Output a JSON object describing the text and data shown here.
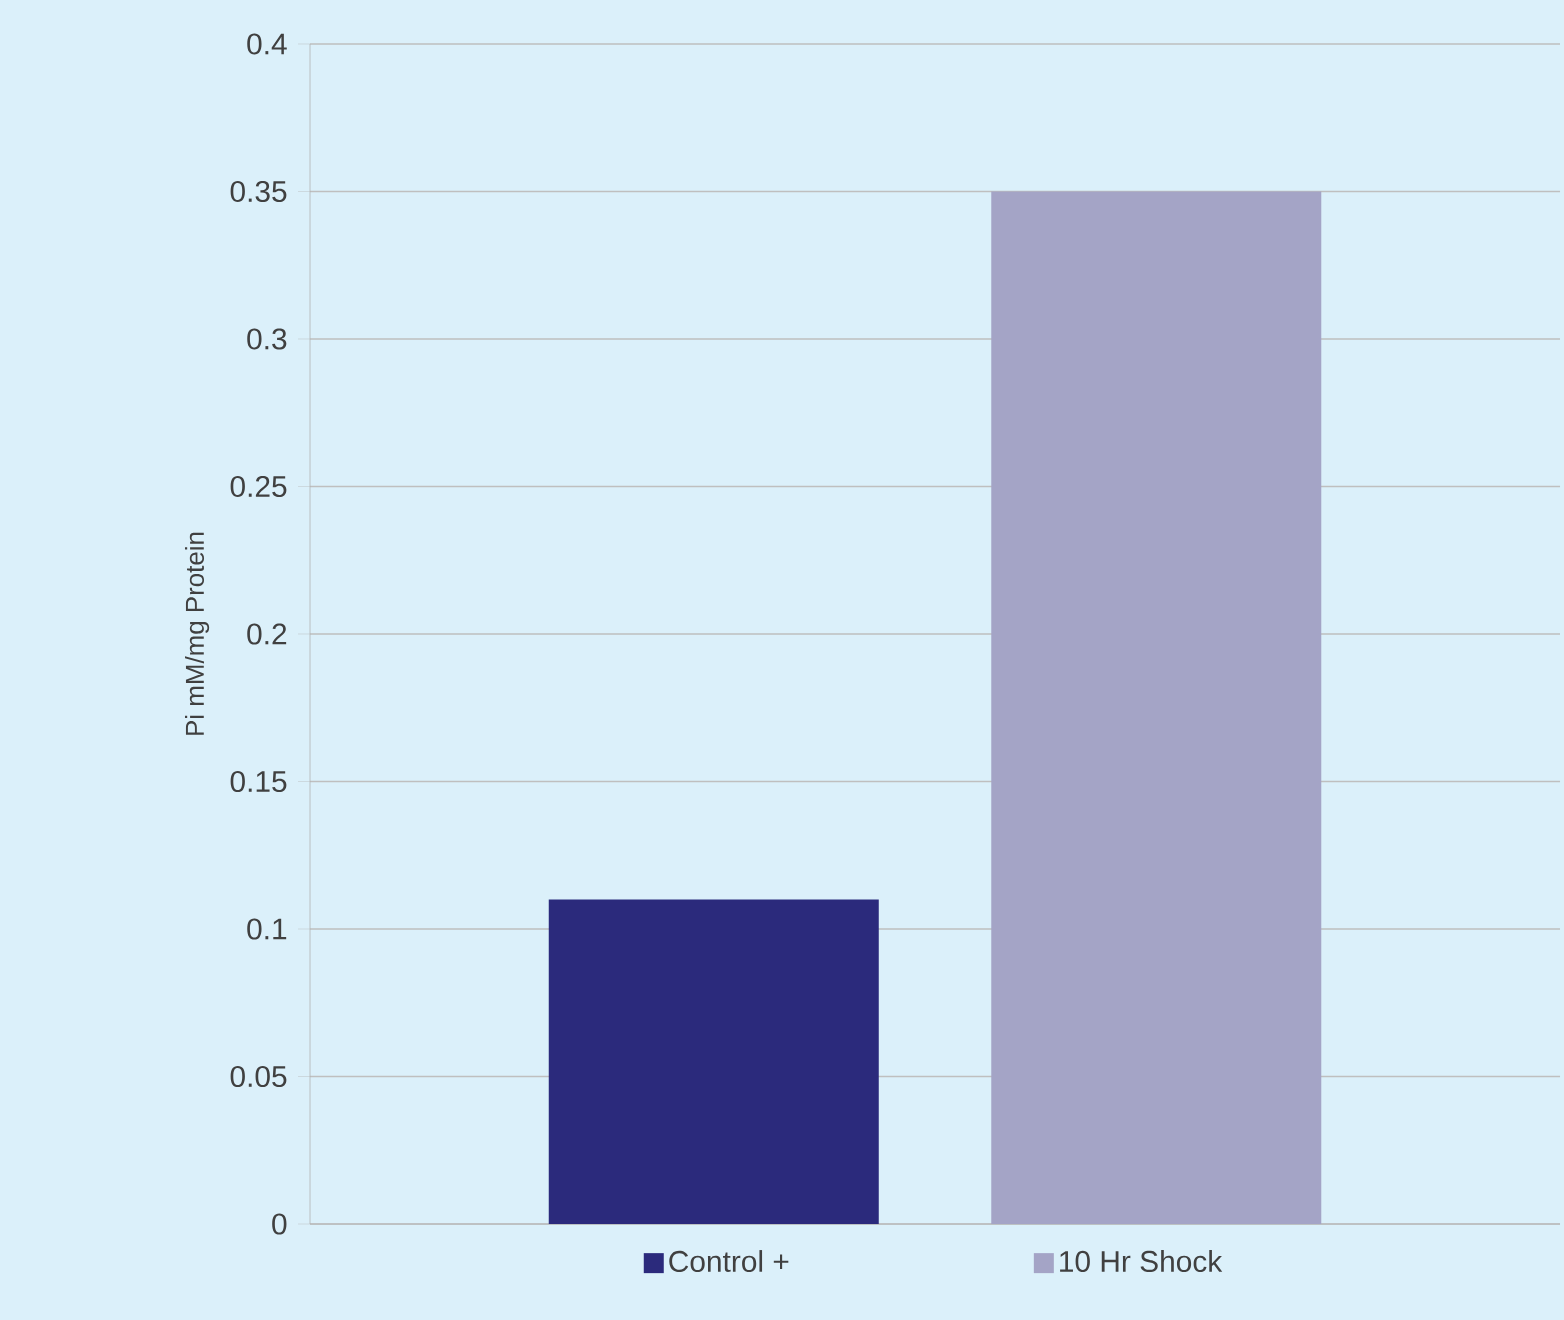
{
  "chart_data": {
    "type": "bar",
    "ylabel": "Pi mM/mg Protein",
    "categories": [
      null
    ],
    "series": [
      {
        "name": "Control +",
        "color": "#2b2a7c",
        "values": [
          0.11
        ]
      },
      {
        "name": "10 Hr Shock",
        "color": "#a4a4c6",
        "values": [
          0.35
        ]
      }
    ],
    "ylim": [
      0,
      0.4
    ],
    "yticks": [
      0,
      0.05,
      0.1,
      0.15,
      0.2,
      0.25,
      0.3,
      0.35,
      0.4
    ],
    "grid": "y",
    "legend": "bottom"
  }
}
